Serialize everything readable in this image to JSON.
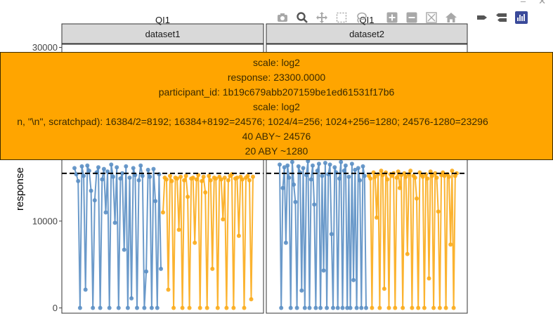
{
  "window": {
    "minimize_label": "–",
    "close_label": "✕"
  },
  "modebar": {
    "buttons": [
      "camera-icon",
      "zoom-icon",
      "pan-icon",
      "box-select-icon",
      "lasso-icon",
      "zoom-in-icon",
      "zoom-out-icon",
      "autoscale-icon",
      "home-icon",
      "spike-lines-icon",
      "compare-hover-icon",
      "plotly-logo-icon"
    ]
  },
  "tooltip": {
    "lines": [
      "scale: log2",
      "response: 23300.0000",
      "participant_id: 1b19c679abb207159be1ed61531f17b6",
      "scale: log2",
      "n, \"\\n\", scratchpad): 16384/2=8192; 16384+8192=24576; 1024/4=256; 1024+256=1280; 24576-1280=23296",
      "40 ABY~ 24576",
      "20 ABY ~1280"
    ]
  },
  "colors": {
    "blue": "#5b8fc4",
    "orange": "#fbab1a",
    "strip_bg": "#d9d9d9",
    "panel_border": "#333333"
  },
  "chart_data": {
    "type": "scatter",
    "mode": "lines+markers",
    "ylabel": "response",
    "yticks": [
      0,
      10000,
      30000
    ],
    "ylim": [
      -300,
      30600
    ],
    "reference_line": {
      "y": 15500,
      "style": "dashed"
    },
    "panels": [
      {
        "strip_top": "QI1",
        "strip_bottom": "dataset1"
      },
      {
        "strip_top": "QI1",
        "strip_bottom": "dataset2"
      }
    ],
    "series": [
      {
        "panel": 0,
        "color": "blue",
        "n": 48,
        "values": [
          16100,
          15400,
          14600,
          0,
          16300,
          15200,
          2100,
          16400,
          15800,
          13500,
          0,
          12400,
          15600,
          16200,
          0,
          14800,
          16000,
          11000,
          15700,
          0,
          16500,
          15100,
          9800,
          16200,
          0,
          14900,
          15500,
          6700,
          16300,
          0,
          15000,
          1100,
          16100,
          15300,
          0,
          14700,
          16400,
          15200,
          0,
          4200,
          15900,
          15100,
          0,
          16000,
          12300,
          0,
          15400,
          4500
        ]
      },
      {
        "panel": 0,
        "color": "orange",
        "n": 52,
        "values": [
          11000,
          15000,
          14800,
          2100,
          15200,
          14600,
          0,
          15000,
          14900,
          9000,
          15100,
          0,
          14700,
          15200,
          12800,
          0,
          14900,
          15000,
          7500,
          14800,
          15300,
          0,
          14600,
          15100,
          13300,
          0,
          15200,
          14700,
          4500,
          15000,
          14900,
          0,
          15100,
          14800,
          10200,
          15000,
          0,
          14700,
          15200,
          15400,
          0,
          14900,
          15000,
          8300,
          15100,
          14800,
          0,
          15000,
          15200,
          14700,
          1000,
          15100
        ]
      },
      {
        "panel": 1,
        "color": "blue",
        "n": 56,
        "values": [
          16500,
          0,
          13800,
          16200,
          7500,
          16400,
          15000,
          0,
          16800,
          14200,
          12200,
          0,
          16300,
          15600,
          2000,
          16100,
          0,
          15300,
          16900,
          0,
          14800,
          16400,
          11900,
          0,
          15800,
          16600,
          0,
          15200,
          4300,
          16700,
          0,
          15400,
          16500,
          8500,
          0,
          16200,
          15600,
          0,
          14900,
          16800,
          0,
          15800,
          16400,
          0,
          15100,
          0,
          16600,
          3200,
          15900,
          0,
          16100,
          14700,
          0,
          16300,
          15200,
          0
        ]
      },
      {
        "panel": 1,
        "color": "orange",
        "n": 58,
        "values": [
          15200,
          14900,
          0,
          15600,
          15100,
          10400,
          15400,
          0,
          15800,
          15300,
          2200,
          15600,
          14800,
          0,
          15400,
          15200,
          15500,
          0,
          15000,
          15700,
          13800,
          15300,
          0,
          15500,
          15100,
          6200,
          15400,
          15800,
          0,
          15200,
          15000,
          12600,
          0,
          15600,
          15300,
          15100,
          0,
          15400,
          14900,
          3400,
          15700,
          15200,
          0,
          15500,
          15000,
          11100,
          0,
          15300,
          15600,
          15200,
          0,
          15400,
          15100,
          7300,
          15800,
          0,
          15200,
          15500
        ]
      }
    ]
  }
}
